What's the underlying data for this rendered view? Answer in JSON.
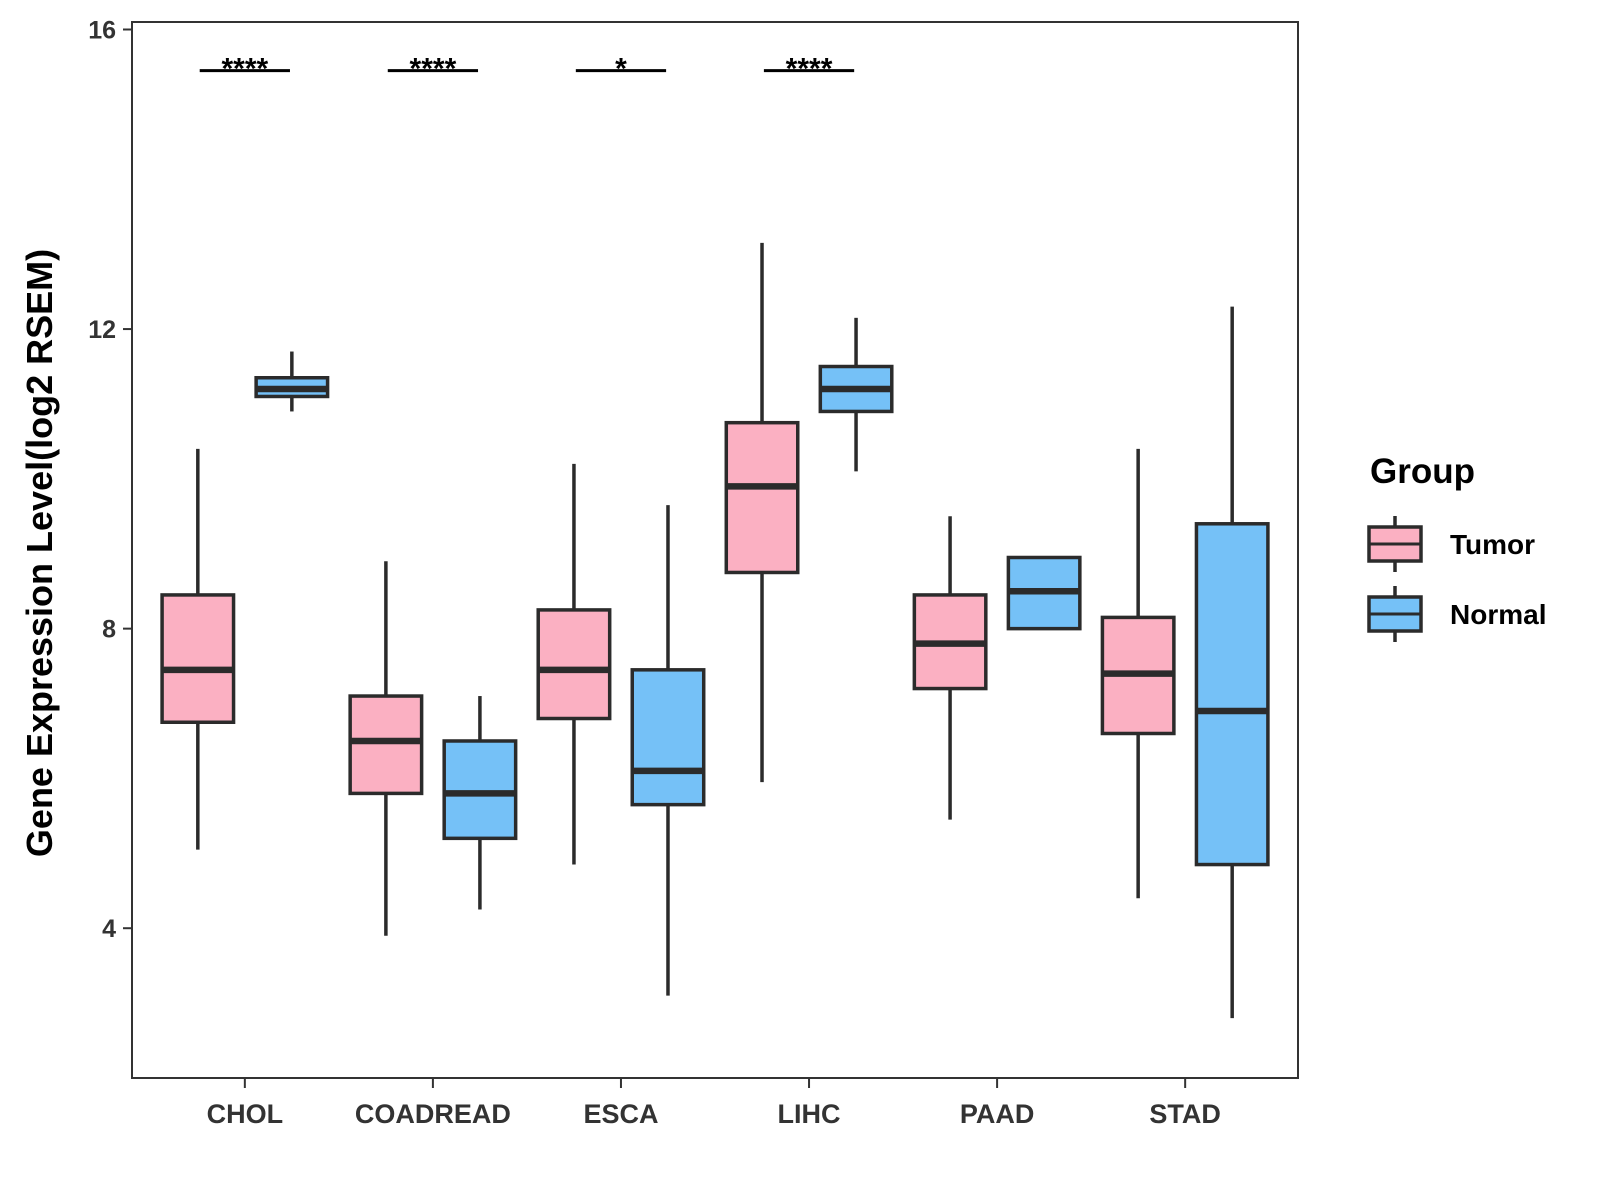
{
  "chart_data": {
    "type": "boxplot",
    "ylabel": "Gene Expression Level(log2 RSEM)",
    "xlabel": "",
    "ylim": [
      2.0,
      16.1
    ],
    "yticks": [
      4,
      8,
      12,
      16
    ],
    "categories": [
      "CHOL",
      "COADREAD",
      "ESCA",
      "LIHC",
      "PAAD",
      "STAD"
    ],
    "legend": {
      "title": "Group",
      "position": "right",
      "entries": [
        {
          "name": "Tumor",
          "color": "#FBB0C2"
        },
        {
          "name": "Normal",
          "color": "#75C1F7"
        }
      ]
    },
    "series": [
      {
        "name": "Tumor",
        "color": "#FBB0C2",
        "boxes": [
          {
            "category": "CHOL",
            "min": 5.05,
            "q1": 6.75,
            "median": 7.45,
            "q3": 8.45,
            "max": 10.4
          },
          {
            "category": "COADREAD",
            "min": 3.9,
            "q1": 5.8,
            "median": 6.5,
            "q3": 7.1,
            "max": 8.9
          },
          {
            "category": "ESCA",
            "min": 4.85,
            "q1": 6.8,
            "median": 7.45,
            "q3": 8.25,
            "max": 10.2
          },
          {
            "category": "LIHC",
            "min": 5.95,
            "q1": 8.75,
            "median": 9.9,
            "q3": 10.75,
            "max": 13.15
          },
          {
            "category": "PAAD",
            "min": 5.45,
            "q1": 7.2,
            "median": 7.8,
            "q3": 8.45,
            "max": 9.5
          },
          {
            "category": "STAD",
            "min": 4.4,
            "q1": 6.6,
            "median": 7.4,
            "q3": 8.15,
            "max": 10.4
          }
        ]
      },
      {
        "name": "Normal",
        "color": "#75C1F7",
        "boxes": [
          {
            "category": "CHOL",
            "min": 10.9,
            "q1": 11.1,
            "median": 11.2,
            "q3": 11.35,
            "max": 11.7
          },
          {
            "category": "COADREAD",
            "min": 4.25,
            "q1": 5.2,
            "median": 5.8,
            "q3": 6.5,
            "max": 7.1
          },
          {
            "category": "ESCA",
            "min": 3.1,
            "q1": 5.65,
            "median": 6.1,
            "q3": 7.45,
            "max": 9.65
          },
          {
            "category": "LIHC",
            "min": 10.1,
            "q1": 10.9,
            "median": 11.2,
            "q3": 11.5,
            "max": 12.15
          },
          {
            "category": "PAAD",
            "min": 8.0,
            "q1": 8.0,
            "median": 8.5,
            "q3": 8.95,
            "max": 8.95
          },
          {
            "category": "STAD",
            "min": 2.8,
            "q1": 4.85,
            "median": 6.9,
            "q3": 9.4,
            "max": 12.3
          }
        ]
      }
    ],
    "significance": [
      {
        "category": "CHOL",
        "label": "****",
        "y": 15.45
      },
      {
        "category": "COADREAD",
        "label": "****",
        "y": 15.45
      },
      {
        "category": "ESCA",
        "label": "*",
        "y": 15.45
      },
      {
        "category": "LIHC",
        "label": "****",
        "y": 15.45
      }
    ]
  }
}
